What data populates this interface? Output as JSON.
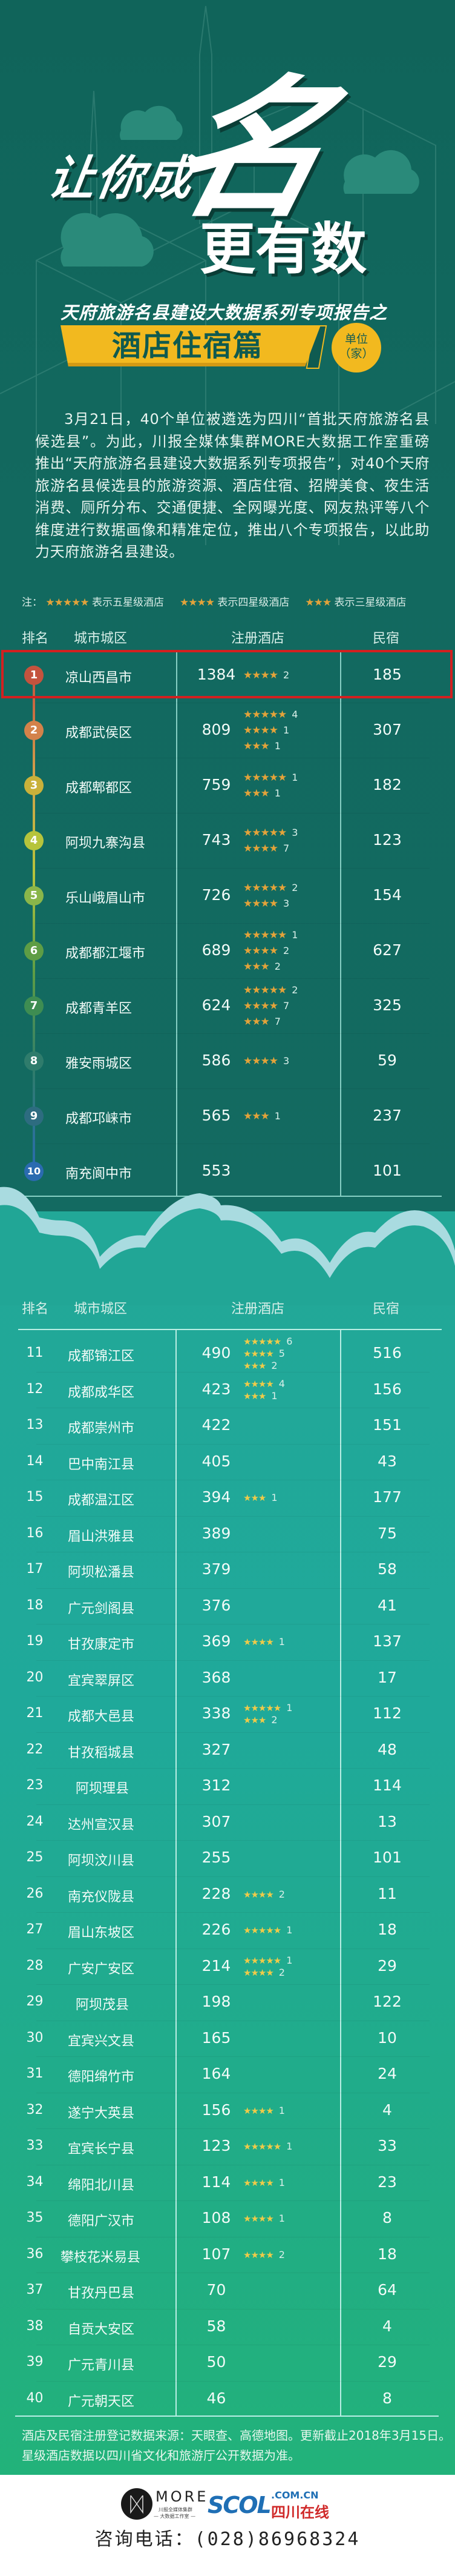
{
  "header": {
    "title_part1": "让你成",
    "title_big_char": "名",
    "title_part2": "更有数",
    "subtitle": "天府旅游名县建设大数据系列专项报告之",
    "banner": "酒店住宿篇",
    "unit_line1": "单位",
    "unit_line2": "（家）"
  },
  "intro": "3月21日，40个单位被遴选为四川“首批天府旅游名县候选县”。为此，川报全媒体集群MORE大数据工作室重磅推出“天府旅游名县建设大数据系列专项报告”，对40个天府旅游名县候选县的旅游资源、酒店住宿、招牌美食、夜生活消费、厕所分布、交通便捷、全网曝光度、网友热评等八个维度进行数据画像和精准定位，推出八个专项报告，以此助力天府旅游名县建设。",
  "legend": {
    "prefix": "注：",
    "items": [
      {
        "stars": 5,
        "label": "表示五星级酒店"
      },
      {
        "stars": 4,
        "label": "表示四星级酒店"
      },
      {
        "stars": 3,
        "label": "表示三星级酒店"
      }
    ]
  },
  "columns": {
    "rank": "排名",
    "city": "城市城区",
    "hotels": "注册酒店",
    "minsu": "民宿"
  },
  "colors": {
    "background_top": "#12695f",
    "background_bottom": "#21ad84",
    "highlight_border": "#d32020",
    "star": "#e3a33a",
    "banner": "#f2b91f",
    "rank_circles": [
      "#c4533e",
      "#d3824a",
      "#c9b13a",
      "#b6c43c",
      "#8ab64a",
      "#5e9d45",
      "#3e8d52",
      "#2f7c6c",
      "#2d6c80",
      "#2a6bb0"
    ]
  },
  "top10": [
    {
      "rank": "1",
      "city": "凉山西昌市",
      "hotels": "1384",
      "stars": [
        {
          "level": 4,
          "count": "2"
        }
      ],
      "minsu": "185",
      "highlighted": true
    },
    {
      "rank": "2",
      "city": "成都武侯区",
      "hotels": "809",
      "stars": [
        {
          "level": 5,
          "count": "4"
        },
        {
          "level": 4,
          "count": "1"
        },
        {
          "level": 3,
          "count": "1"
        }
      ],
      "minsu": "307"
    },
    {
      "rank": "3",
      "city": "成都郫都区",
      "hotels": "759",
      "stars": [
        {
          "level": 5,
          "count": "1"
        },
        {
          "level": 3,
          "count": "1"
        }
      ],
      "minsu": "182"
    },
    {
      "rank": "4",
      "city": "阿坝九寨沟县",
      "hotels": "743",
      "stars": [
        {
          "level": 5,
          "count": "3"
        },
        {
          "level": 4,
          "count": "7"
        }
      ],
      "minsu": "123"
    },
    {
      "rank": "5",
      "city": "乐山峨眉山市",
      "hotels": "726",
      "stars": [
        {
          "level": 5,
          "count": "2"
        },
        {
          "level": 4,
          "count": "3"
        }
      ],
      "minsu": "154"
    },
    {
      "rank": "6",
      "city": "成都都江堰市",
      "hotels": "689",
      "stars": [
        {
          "level": 5,
          "count": "1"
        },
        {
          "level": 4,
          "count": "2"
        },
        {
          "level": 3,
          "count": "2"
        }
      ],
      "minsu": "627"
    },
    {
      "rank": "7",
      "city": "成都青羊区",
      "hotels": "624",
      "stars": [
        {
          "level": 5,
          "count": "2"
        },
        {
          "level": 4,
          "count": "7"
        },
        {
          "level": 3,
          "count": "7"
        }
      ],
      "minsu": "325"
    },
    {
      "rank": "8",
      "city": "雅安雨城区",
      "hotels": "586",
      "stars": [
        {
          "level": 4,
          "count": "3"
        }
      ],
      "minsu": "59"
    },
    {
      "rank": "9",
      "city": "成都邛崃市",
      "hotels": "565",
      "stars": [
        {
          "level": 3,
          "count": "1"
        }
      ],
      "minsu": "237"
    },
    {
      "rank": "10",
      "city": "南充阆中市",
      "hotels": "553",
      "stars": [],
      "minsu": "101"
    }
  ],
  "rest": [
    {
      "rank": "11",
      "city": "成都锦江区",
      "hotels": "490",
      "stars": [
        {
          "level": 5,
          "count": "6"
        },
        {
          "level": 4,
          "count": "5"
        },
        {
          "level": 3,
          "count": "2"
        }
      ],
      "minsu": "516"
    },
    {
      "rank": "12",
      "city": "成都成华区",
      "hotels": "423",
      "stars": [
        {
          "level": 4,
          "count": "4"
        },
        {
          "level": 3,
          "count": "1"
        }
      ],
      "minsu": "156"
    },
    {
      "rank": "13",
      "city": "成都崇州市",
      "hotels": "422",
      "stars": [],
      "minsu": "151"
    },
    {
      "rank": "14",
      "city": "巴中南江县",
      "hotels": "405",
      "stars": [],
      "minsu": "43"
    },
    {
      "rank": "15",
      "city": "成都温江区",
      "hotels": "394",
      "stars": [
        {
          "level": 3,
          "count": "1"
        }
      ],
      "minsu": "177"
    },
    {
      "rank": "16",
      "city": "眉山洪雅县",
      "hotels": "389",
      "stars": [],
      "minsu": "75"
    },
    {
      "rank": "17",
      "city": "阿坝松潘县",
      "hotels": "379",
      "stars": [],
      "minsu": "58"
    },
    {
      "rank": "18",
      "city": "广元剑阁县",
      "hotels": "376",
      "stars": [],
      "minsu": "41"
    },
    {
      "rank": "19",
      "city": "甘孜康定市",
      "hotels": "369",
      "stars": [
        {
          "level": 4,
          "count": "1"
        }
      ],
      "minsu": "137"
    },
    {
      "rank": "20",
      "city": "宜宾翠屏区",
      "hotels": "368",
      "stars": [],
      "minsu": "17"
    },
    {
      "rank": "21",
      "city": "成都大邑县",
      "hotels": "338",
      "stars": [
        {
          "level": 5,
          "count": "1"
        },
        {
          "level": 3,
          "count": "2"
        }
      ],
      "minsu": "112"
    },
    {
      "rank": "22",
      "city": "甘孜稻城县",
      "hotels": "327",
      "stars": [],
      "minsu": "48"
    },
    {
      "rank": "23",
      "city": "阿坝理县",
      "hotels": "312",
      "stars": [],
      "minsu": "114"
    },
    {
      "rank": "24",
      "city": "达州宣汉县",
      "hotels": "307",
      "stars": [],
      "minsu": "13"
    },
    {
      "rank": "25",
      "city": "阿坝汶川县",
      "hotels": "255",
      "stars": [],
      "minsu": "101"
    },
    {
      "rank": "26",
      "city": "南充仪陇县",
      "hotels": "228",
      "stars": [
        {
          "level": 4,
          "count": "2"
        }
      ],
      "minsu": "11"
    },
    {
      "rank": "27",
      "city": "眉山东坡区",
      "hotels": "226",
      "stars": [
        {
          "level": 5,
          "count": "1"
        }
      ],
      "minsu": "18"
    },
    {
      "rank": "28",
      "city": "广安广安区",
      "hotels": "214",
      "stars": [
        {
          "level": 5,
          "count": "1"
        },
        {
          "level": 4,
          "count": "2"
        }
      ],
      "minsu": "29"
    },
    {
      "rank": "29",
      "city": "阿坝茂县",
      "hotels": "198",
      "stars": [],
      "minsu": "122"
    },
    {
      "rank": "30",
      "city": "宜宾兴文县",
      "hotels": "165",
      "stars": [],
      "minsu": "10"
    },
    {
      "rank": "31",
      "city": "德阳绵竹市",
      "hotels": "164",
      "stars": [],
      "minsu": "24"
    },
    {
      "rank": "32",
      "city": "遂宁大英县",
      "hotels": "156",
      "stars": [
        {
          "level": 4,
          "count": "1"
        }
      ],
      "minsu": "4"
    },
    {
      "rank": "33",
      "city": "宜宾长宁县",
      "hotels": "123",
      "stars": [
        {
          "level": 5,
          "count": "1"
        }
      ],
      "minsu": "33"
    },
    {
      "rank": "34",
      "city": "绵阳北川县",
      "hotels": "114",
      "stars": [
        {
          "level": 4,
          "count": "1"
        }
      ],
      "minsu": "23"
    },
    {
      "rank": "35",
      "city": "德阳广汉市",
      "hotels": "108",
      "stars": [
        {
          "level": 4,
          "count": "1"
        }
      ],
      "minsu": "8"
    },
    {
      "rank": "36",
      "city": "攀枝花米易县",
      "hotels": "107",
      "stars": [
        {
          "level": 4,
          "count": "2"
        }
      ],
      "minsu": "18"
    },
    {
      "rank": "37",
      "city": "甘孜丹巴县",
      "hotels": "70",
      "stars": [],
      "minsu": "64"
    },
    {
      "rank": "38",
      "city": "自贡大安区",
      "hotels": "58",
      "stars": [],
      "minsu": "4"
    },
    {
      "rank": "39",
      "city": "广元青川县",
      "hotels": "50",
      "stars": [],
      "minsu": "29"
    },
    {
      "rank": "40",
      "city": "广元朝天区",
      "hotels": "46",
      "stars": [],
      "minsu": "8"
    }
  ],
  "notes": [
    "酒店及民宿注册登记数据来源：天眼查、高德地图。更新截止2018年3月15日。",
    "星级酒店数据以四川省文化和旅游厅公开数据为准。"
  ],
  "footer": {
    "logo_more": "MORE",
    "logo_more_sub1": "川报全媒体集群",
    "logo_more_sub2": "— 大数据工作室 —",
    "logo_scol": "SCOL",
    "logo_scol_domain": ".COM.CN",
    "logo_scol_cn": "四川在线",
    "phone": "咨询电话：(028)86968324"
  }
}
